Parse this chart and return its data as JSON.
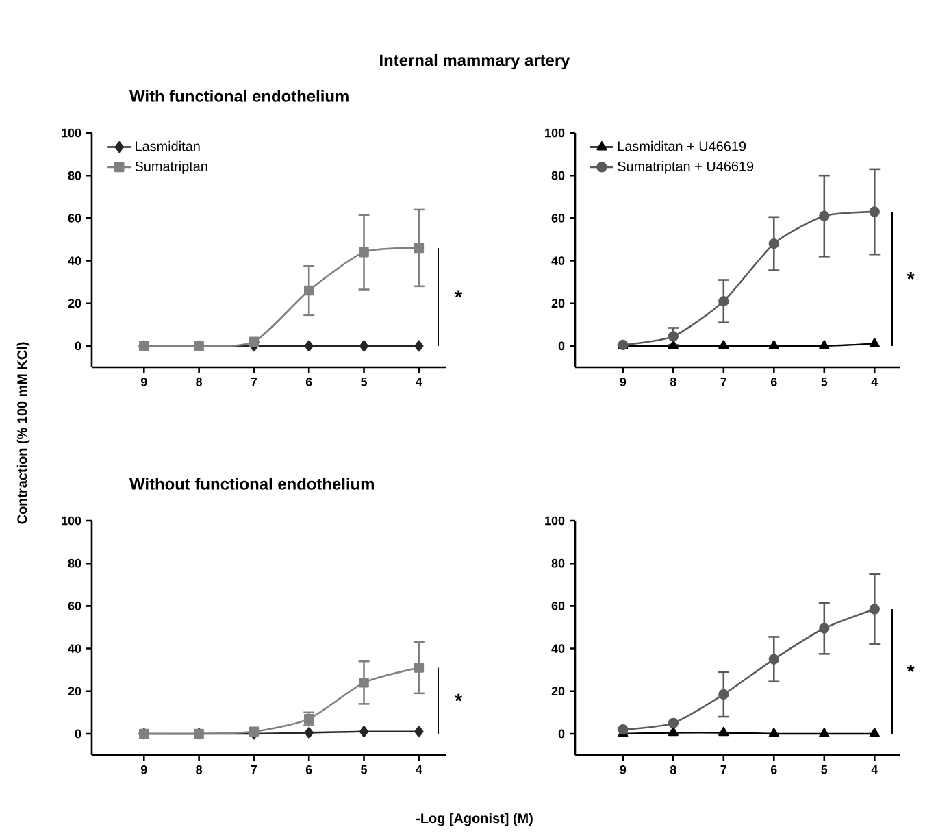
{
  "chart_data": [
    {
      "type": "line",
      "title": "Internal mammary artery",
      "subtitle": "With functional endothelium",
      "ylabel": "Contraction (% 100 mM KCl)",
      "categories": [
        "9",
        "8",
        "7",
        "6",
        "5",
        "4"
      ],
      "ylim": [
        -10,
        100
      ],
      "yticks": [
        0,
        20,
        40,
        60,
        80,
        100
      ],
      "legend": "top left",
      "annotations": [
        "*"
      ],
      "series": [
        {
          "name": "Lasmiditan",
          "color": "#262626",
          "marker": "diamond",
          "values": [
            0,
            0,
            0,
            0,
            0,
            0
          ]
        },
        {
          "name": "Sumatriptan",
          "color": "#808080",
          "marker": "square",
          "values": [
            0,
            0,
            2,
            26,
            44,
            46
          ],
          "errors": [
            null,
            null,
            null,
            11.5,
            17.5,
            18
          ]
        }
      ]
    },
    {
      "type": "line",
      "categories": [
        "9",
        "8",
        "7",
        "6",
        "5",
        "4"
      ],
      "ylim": [
        -10,
        100
      ],
      "yticks": [
        0,
        20,
        40,
        60,
        80,
        100
      ],
      "legend": "top left",
      "annotations": [
        "*"
      ],
      "series": [
        {
          "name": "Lasmiditan + U46619",
          "color": "#000000",
          "marker": "triangle",
          "values": [
            0,
            0,
            0,
            0,
            0,
            1
          ]
        },
        {
          "name": "Sumatriptan + U46619",
          "color": "#5a5a5a",
          "marker": "circle",
          "values": [
            0.5,
            4.5,
            21,
            48,
            61,
            63
          ],
          "errors": [
            null,
            4,
            10,
            12.5,
            19,
            20
          ]
        }
      ]
    },
    {
      "type": "line",
      "subtitle": "Without functional endothelium",
      "xlabel": "-Log [Agonist] (M)",
      "categories": [
        "9",
        "8",
        "7",
        "6",
        "5",
        "4"
      ],
      "ylim": [
        -10,
        100
      ],
      "yticks": [
        0,
        20,
        40,
        60,
        80,
        100
      ],
      "annotations": [
        "*"
      ],
      "series": [
        {
          "color": "#262626",
          "marker": "diamond",
          "values": [
            0,
            0,
            0,
            0.5,
            1,
            1
          ]
        },
        {
          "color": "#808080",
          "marker": "square",
          "values": [
            0,
            0,
            1,
            7,
            24,
            31
          ],
          "errors": [
            null,
            null,
            null,
            3,
            10,
            12
          ]
        }
      ]
    },
    {
      "type": "line",
      "categories": [
        "9",
        "8",
        "7",
        "6",
        "5",
        "4"
      ],
      "ylim": [
        -10,
        100
      ],
      "yticks": [
        0,
        20,
        40,
        60,
        80,
        100
      ],
      "annotations": [
        "*"
      ],
      "series": [
        {
          "color": "#000000",
          "marker": "triangle",
          "values": [
            0,
            0.5,
            0.5,
            0,
            0,
            0
          ]
        },
        {
          "color": "#5a5a5a",
          "marker": "circle",
          "values": [
            2,
            5,
            18.5,
            35,
            49.5,
            58.5
          ],
          "errors": [
            null,
            null,
            10.5,
            10.5,
            12,
            16.5
          ]
        }
      ]
    }
  ]
}
